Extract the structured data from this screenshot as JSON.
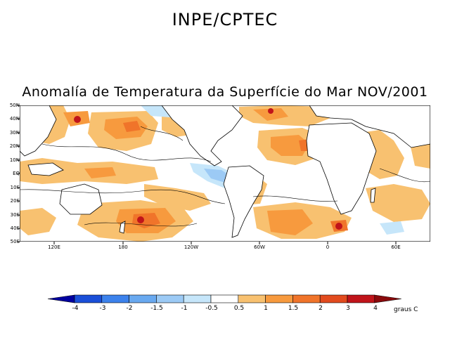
{
  "header": {
    "org": "INPE/CPTEC",
    "map_title": "Anomalía de Temperatura da Superfície do Mar NOV/2001"
  },
  "axes": {
    "lat_labels": [
      "50N",
      "40N",
      "30N",
      "20N",
      "10N",
      "EQ",
      "10S",
      "20S",
      "30S",
      "40S",
      "50S"
    ],
    "lon_labels": [
      "120E",
      "180",
      "120W",
      "60W",
      "0",
      "60E"
    ]
  },
  "colorbar": {
    "labels": [
      "-4",
      "-3",
      "-2",
      "-1.5",
      "-1",
      "-0.5",
      "0.5",
      "1",
      "1.5",
      "2",
      "3",
      "4"
    ],
    "units": "graus C",
    "colors": [
      "#0000a0",
      "#1a4fd8",
      "#3c82ec",
      "#69a9f0",
      "#9ccaf5",
      "#c6e6fa",
      "#ffffff",
      "#f8c170",
      "#f79a3e",
      "#f0742a",
      "#e24b1e",
      "#c0141a",
      "#8a0a0c"
    ]
  },
  "map": {
    "land_color": "#ffffff",
    "coast_color": "#000000"
  }
}
